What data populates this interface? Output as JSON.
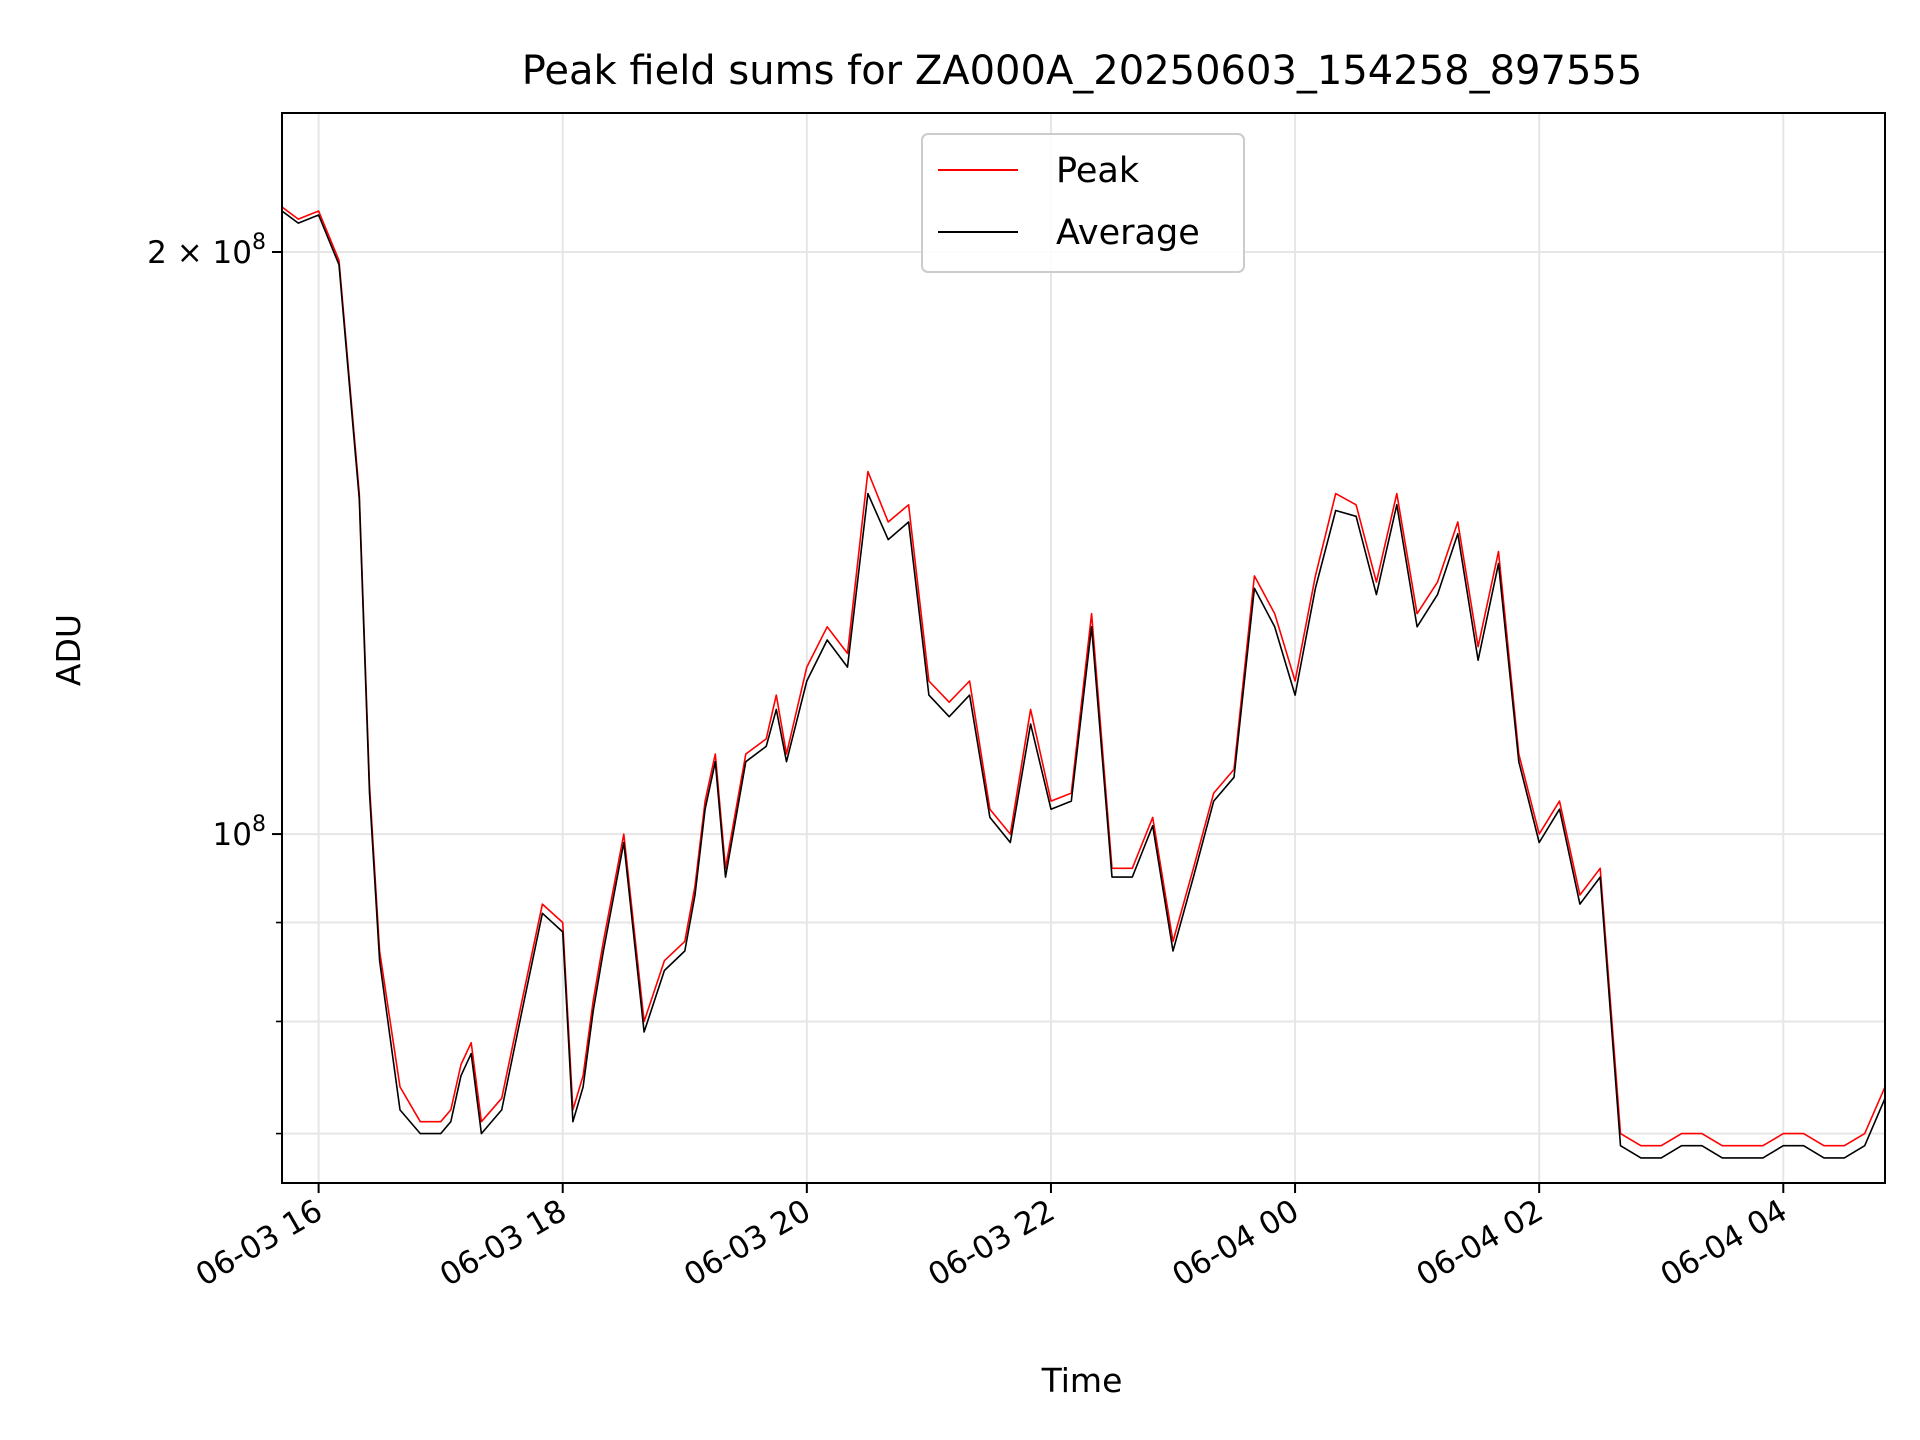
{
  "chart_data": {
    "type": "line",
    "title": "Peak field sums for ZA000A_20250603_154258_897555",
    "xlabel": "Time",
    "ylabel": "ADU",
    "y_scale": "log",
    "xlim": [
      "2025-06-03 15:42",
      "2025-06-04 04:50"
    ],
    "ylim": [
      66000000,
      236000000
    ],
    "grid": true,
    "legend_position": "upper center",
    "x_ticks": [
      "06-03 16",
      "06-03 18",
      "06-03 20",
      "06-03 22",
      "06-04 00",
      "06-04 02",
      "06-04 04"
    ],
    "y_ticks": [
      {
        "value": 200000000,
        "label": "2 × 10",
        "exp": "8"
      },
      {
        "value": 100000000,
        "label": "10",
        "exp": "8"
      }
    ],
    "x": [
      "15:42",
      "15:50",
      "16:00",
      "16:10",
      "16:20",
      "16:25",
      "16:30",
      "16:40",
      "16:50",
      "17:00",
      "17:05",
      "17:10",
      "17:15",
      "17:20",
      "17:30",
      "17:40",
      "17:50",
      "18:00",
      "18:05",
      "18:10",
      "18:15",
      "18:20",
      "18:30",
      "18:40",
      "18:50",
      "19:00",
      "19:05",
      "19:10",
      "19:15",
      "19:20",
      "19:30",
      "19:40",
      "19:45",
      "19:50",
      "20:00",
      "20:10",
      "20:20",
      "20:30",
      "20:40",
      "20:50",
      "21:00",
      "21:10",
      "21:20",
      "21:30",
      "21:40",
      "21:50",
      "22:00",
      "22:10",
      "22:20",
      "22:30",
      "22:40",
      "22:50",
      "23:00",
      "23:10",
      "23:20",
      "23:30",
      "23:40",
      "23:50",
      "00:00",
      "00:10",
      "00:20",
      "00:30",
      "00:40",
      "00:50",
      "01:00",
      "01:10",
      "01:20",
      "01:30",
      "01:40",
      "01:50",
      "02:00",
      "02:10",
      "02:20",
      "02:30",
      "02:40",
      "02:50",
      "03:00",
      "03:10",
      "03:20",
      "03:30",
      "03:40",
      "03:50",
      "04:00",
      "04:10",
      "04:20",
      "04:30",
      "04:40",
      "04:50"
    ],
    "series": [
      {
        "name": "Peak",
        "color": "#ff0000",
        "values": [
          211,
          208,
          210,
          198,
          150,
          106,
          87,
          74,
          71,
          71,
          72,
          76,
          78,
          71,
          73,
          82,
          92,
          90,
          72,
          75,
          82,
          88,
          100,
          80,
          86,
          88,
          94,
          104,
          110,
          96,
          110,
          112,
          118,
          110,
          122,
          128,
          124,
          154,
          145,
          148,
          120,
          117,
          120,
          103,
          100,
          116,
          104,
          105,
          130,
          96,
          96,
          102,
          88,
          96,
          105,
          108,
          136,
          130,
          120,
          136,
          150,
          148,
          135,
          150,
          130,
          135,
          145,
          125,
          140,
          110,
          100,
          104,
          93,
          96,
          70,
          69,
          69,
          70,
          70,
          69,
          69,
          69,
          70,
          70,
          69,
          69,
          70,
          74
        ]
      },
      {
        "name": "Average",
        "color": "#000000",
        "values": [
          210,
          207,
          209,
          197,
          149,
          105,
          86,
          72,
          70,
          70,
          71,
          75,
          77,
          70,
          72,
          81,
          91,
          89,
          71,
          74,
          81,
          87,
          99,
          79,
          85,
          87,
          93,
          103,
          109,
          95,
          109,
          111,
          116,
          109,
          120,
          126,
          122,
          150,
          142,
          145,
          118,
          115,
          118,
          102,
          99,
          114,
          103,
          104,
          128,
          95,
          95,
          101,
          87,
          95,
          104,
          107,
          134,
          128,
          118,
          134,
          147,
          146,
          133,
          148,
          128,
          133,
          143,
          123,
          138,
          109,
          99,
          103,
          92,
          95,
          69,
          68,
          68,
          69,
          69,
          68,
          68,
          68,
          69,
          69,
          68,
          68,
          69,
          73
        ]
      }
    ]
  }
}
